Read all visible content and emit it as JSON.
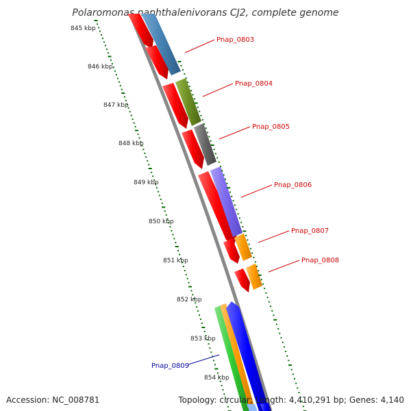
{
  "title": "Polaromonas naphthalenivorans CJ2, complete genome",
  "footer": {
    "accession": "Accession: NC_008781",
    "summary": "Topology: circular; Length: 4,410,291 bp; Genes: 4,140"
  },
  "ticks": [
    "845 kbp",
    "846 kbp",
    "847 kbp",
    "848 kbp",
    "849 kbp",
    "850 kbp",
    "851 kbp",
    "852 kbp",
    "853 kbp",
    "854 kbp"
  ],
  "genes": [
    {
      "label": "Pnap_0803",
      "color": "#cc0000"
    },
    {
      "label": "Pnap_0804",
      "color": "#cc0000"
    },
    {
      "label": "Pnap_0805",
      "color": "#cc0000"
    },
    {
      "label": "Pnap_0806",
      "color": "#cc0000"
    },
    {
      "label": "Pnap_0807",
      "color": "#cc0000"
    },
    {
      "label": "Pnap_0808",
      "color": "#cc0000"
    },
    {
      "label": "Pnap_0809",
      "color": "#000099"
    }
  ],
  "colors": {
    "cds": "#ff0000",
    "blue_steel": "#4682b4",
    "olive": "#6b8e23",
    "gray": "#666666",
    "purple": "#7b68ee",
    "orange": "#ff9900",
    "green": "#33cc33",
    "blue": "#0000ff",
    "backbone": "#888888",
    "ruler": "#006600"
  }
}
